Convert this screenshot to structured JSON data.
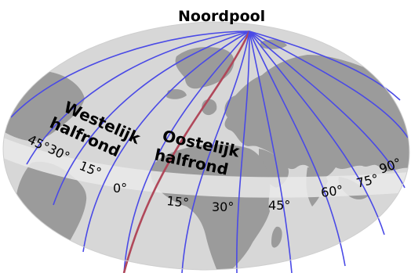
{
  "map": {
    "north_pole_label": "Noordpool",
    "west_hemisphere_label_line1": "Westelijk",
    "west_hemisphere_label_line2": "halfrond",
    "east_hemisphere_label_line1": "Oostelijk",
    "east_hemisphere_label_line2": "halfrond",
    "meridian_labels": {
      "w45": "45°",
      "w30": "30°",
      "w15": "15°",
      "m0": "0°",
      "e15": "15°",
      "e30": "30°",
      "e45": "45°",
      "e60": "60°",
      "e75": "75°",
      "e90": "90°"
    },
    "colors": {
      "globe": "#d7d7d7",
      "land": "#9b9b9b",
      "equator_band": "#eaeaea",
      "meridian": "#4a4ae6",
      "prime_meridian": "#b0485a"
    }
  }
}
